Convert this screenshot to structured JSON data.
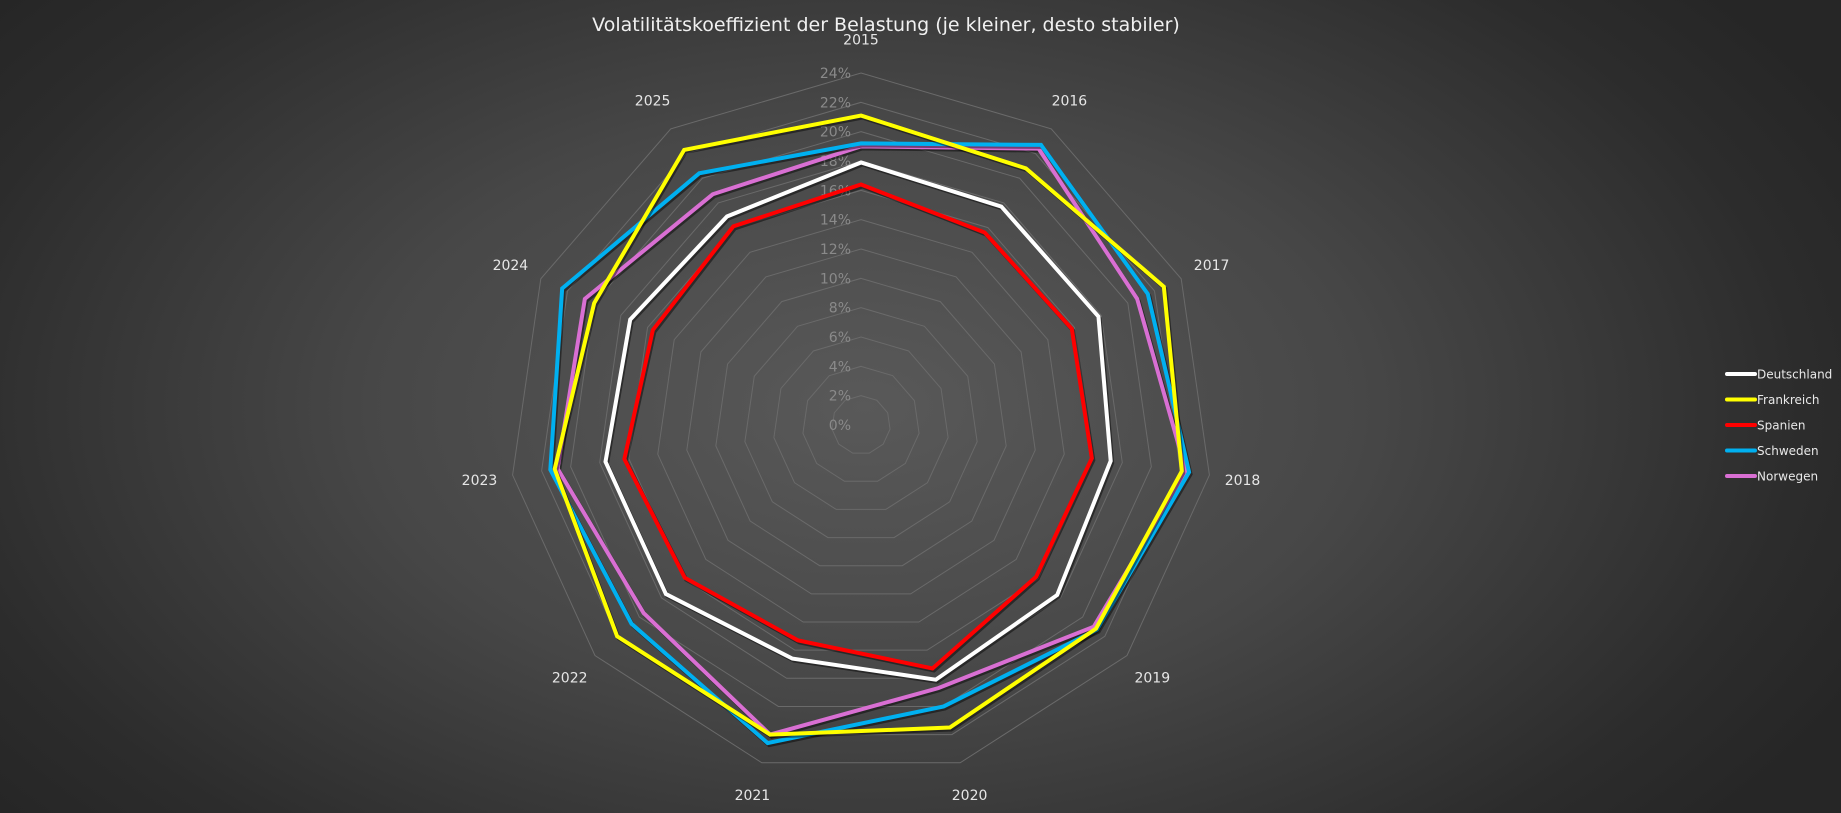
{
  "chart_data": {
    "type": "radar",
    "title": "Volatilitätskoeffizient der Belastung (je kleiner, desto stabiler)",
    "categories": [
      "2015",
      "2016",
      "2017",
      "2018",
      "2019",
      "2020",
      "2021",
      "2022",
      "2023",
      "2024",
      "2025"
    ],
    "ticks": [
      "0%",
      "2%",
      "4%",
      "6%",
      "8%",
      "10%",
      "12%",
      "14%",
      "16%",
      "18%",
      "20%",
      "22%",
      "24%"
    ],
    "rlim": [
      0,
      24
    ],
    "unit": "%",
    "grid": true,
    "legend_position": "right",
    "series": [
      {
        "name": "Deutschland",
        "color": "#ffffff",
        "values": [
          17.9,
          17.7,
          17.8,
          17.2,
          17.7,
          18.1,
          16.6,
          17.6,
          17.6,
          17.3,
          16.9
        ]
      },
      {
        "name": "Spanien",
        "color": "#ff0000",
        "values": [
          16.4,
          15.6,
          15.8,
          15.9,
          15.8,
          17.3,
          15.3,
          15.9,
          16.3,
          15.6,
          16.1
        ]
      },
      {
        "name": "Norwegen",
        "color": "#d96fd3",
        "values": [
          19.0,
          22.4,
          20.7,
          22.4,
          21.0,
          18.7,
          22.0,
          19.6,
          20.9,
          20.7,
          18.7
        ]
      },
      {
        "name": "Schweden",
        "color": "#00b0f0",
        "values": [
          19.2,
          22.7,
          21.5,
          22.6,
          21.3,
          20.0,
          22.6,
          20.7,
          21.4,
          22.4,
          20.4
        ]
      },
      {
        "name": "Frankreich",
        "color": "#ffff00",
        "values": [
          21.1,
          20.8,
          22.7,
          22.1,
          21.2,
          21.5,
          22.0,
          22.0,
          21.1,
          20.0,
          22.3
        ]
      }
    ],
    "legend_order": [
      "Deutschland",
      "Frankreich",
      "Spanien",
      "Schweden",
      "Norwegen"
    ]
  }
}
